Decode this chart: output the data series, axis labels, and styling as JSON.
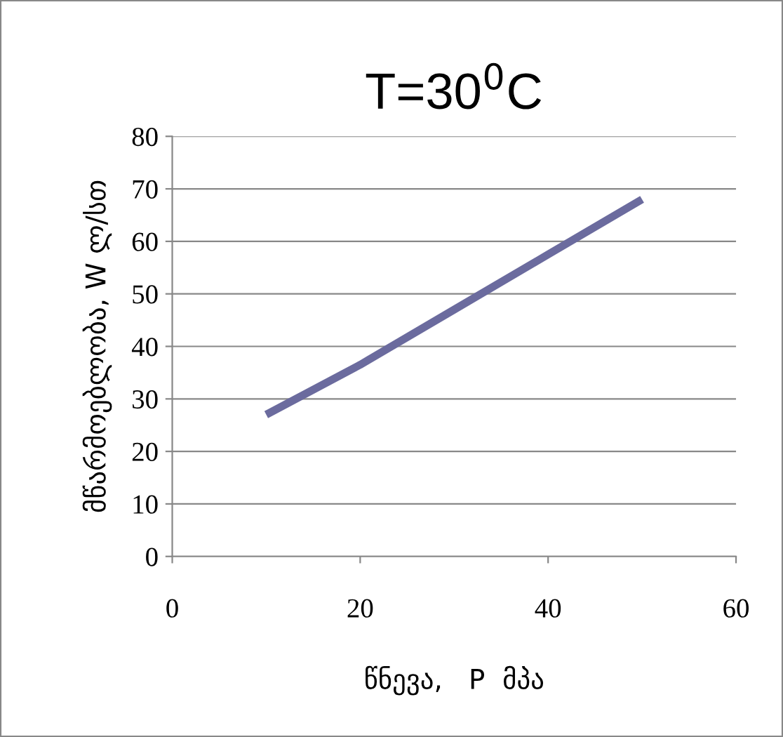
{
  "chart_data": {
    "type": "line",
    "title": "T=30$^{0}$C",
    "xlabel": "წნევა,   P  მპა",
    "ylabel": "მწარმოებლობა, W ლ/სთ",
    "x": [
      10,
      20,
      30,
      40,
      50
    ],
    "series": [
      {
        "color": "#6b6b9e",
        "values": [
          27,
          36.5,
          47,
          57.5,
          68
        ]
      }
    ],
    "xlim": [
      0,
      60
    ],
    "xticks": [
      0,
      20,
      40,
      60
    ],
    "ylim": [
      0,
      80
    ],
    "yticks": [
      0,
      10,
      20,
      30,
      40,
      50,
      60,
      70,
      80
    ],
    "grid": "y",
    "legend": false
  }
}
